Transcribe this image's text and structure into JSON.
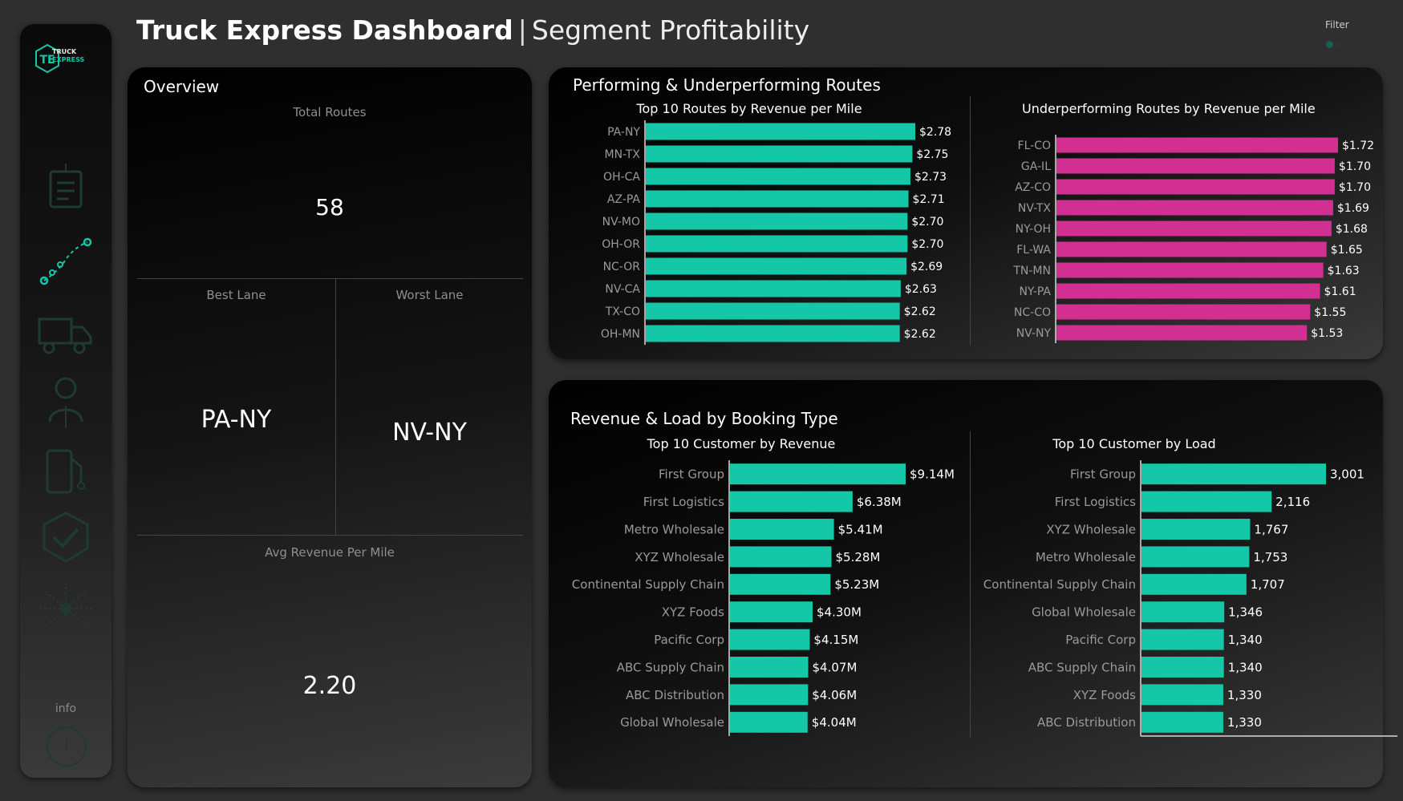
{
  "colors": {
    "teal": "#14c7a6",
    "magenta": "#d12f91",
    "background": "#2f2f2f"
  },
  "header": {
    "title_main": "Truck Express Dashboard",
    "separator": "|",
    "title_sub": "Segment Profitability",
    "filter_label": "Filter"
  },
  "sidebar": {
    "logo_initials": "TE",
    "logo_line1": "TRUCK",
    "logo_line2": "EXPRESS",
    "icons": [
      "document-icon",
      "route-icon",
      "truck-icon",
      "driver-icon",
      "fuel-icon",
      "shield-check-icon",
      "network-icon"
    ],
    "info_label": "info",
    "info_symbol": "i"
  },
  "overview": {
    "title": "Overview",
    "total_routes_label": "Total Routes",
    "total_routes_value": "58",
    "best_lane_label": "Best Lane",
    "best_lane_value": "PA-NY",
    "worst_lane_label": "Worst Lane",
    "worst_lane_value": "NV-NY",
    "avg_rev_label": "Avg Revenue Per Mile",
    "avg_rev_value": "2.20"
  },
  "routes_card": {
    "title": "Performing & Underperforming Routes"
  },
  "booking_card": {
    "title": "Revenue & Load by Booking Type"
  },
  "chart_data": [
    {
      "type": "bar",
      "orientation": "horizontal",
      "title": "Top 10  Routes by Revenue per Mile",
      "categories": [
        "PA-NY",
        "MN-TX",
        "OH-CA",
        "AZ-PA",
        "NV-MO",
        "OH-OR",
        "NC-OR",
        "NV-CA",
        "TX-CO",
        "OH-MN"
      ],
      "values": [
        2.78,
        2.75,
        2.73,
        2.71,
        2.7,
        2.7,
        2.69,
        2.63,
        2.62,
        2.62
      ],
      "labels": [
        "$2.78",
        "$2.75",
        "$2.73",
        "$2.71",
        "$2.70",
        "$2.70",
        "$2.69",
        "$2.63",
        "$2.62",
        "$2.62"
      ],
      "color": "#14c7a6",
      "xlim": [
        0,
        2.78
      ]
    },
    {
      "type": "bar",
      "orientation": "horizontal",
      "title": "Underperforming Routes by Revenue per Mile",
      "categories": [
        "FL-CO",
        "GA-IL",
        "AZ-CO",
        "NV-TX",
        "NY-OH",
        "FL-WA",
        "TN-MN",
        "NY-PA",
        "NC-CO",
        "NV-NY"
      ],
      "values": [
        1.72,
        1.7,
        1.7,
        1.69,
        1.68,
        1.65,
        1.63,
        1.61,
        1.55,
        1.53
      ],
      "labels": [
        "$1.72",
        "$1.70",
        "$1.70",
        "$1.69",
        "$1.68",
        "$1.65",
        "$1.63",
        "$1.61",
        "$1.55",
        "$1.53"
      ],
      "color": "#d12f91",
      "xlim": [
        0,
        1.72
      ]
    },
    {
      "type": "bar",
      "orientation": "horizontal",
      "title": "Top 10 Customer by Revenue",
      "categories": [
        "First Group",
        "First Logistics",
        "Metro Wholesale",
        "XYZ Wholesale",
        "Continental Supply Chain",
        "XYZ Foods",
        "Pacific Corp",
        "ABC Supply Chain",
        "ABC Distribution",
        "Global Wholesale"
      ],
      "values": [
        9.14,
        6.38,
        5.41,
        5.28,
        5.23,
        4.3,
        4.15,
        4.07,
        4.06,
        4.04
      ],
      "labels": [
        "$9.14M",
        "$6.38M",
        "$5.41M",
        "$5.28M",
        "$5.23M",
        "$4.30M",
        "$4.15M",
        "$4.07M",
        "$4.06M",
        "$4.04M"
      ],
      "color": "#14c7a6",
      "xlim": [
        0,
        9.14
      ]
    },
    {
      "type": "bar",
      "orientation": "horizontal",
      "title": "Top 10 Customer by Load",
      "categories": [
        "First Group",
        "First Logistics",
        "XYZ Wholesale",
        "Metro Wholesale",
        "Continental Supply Chain",
        "Global Wholesale",
        "Pacific Corp",
        "ABC Supply Chain",
        "XYZ Foods",
        "ABC Distribution"
      ],
      "values": [
        3001,
        2116,
        1767,
        1753,
        1707,
        1346,
        1340,
        1340,
        1330,
        1330
      ],
      "labels": [
        "3,001",
        "2,116",
        "1,767",
        "1,753",
        "1,707",
        "1,346",
        "1,340",
        "1,340",
        "1,330",
        "1,330"
      ],
      "color": "#14c7a6",
      "xlim": [
        0,
        3001
      ]
    }
  ]
}
